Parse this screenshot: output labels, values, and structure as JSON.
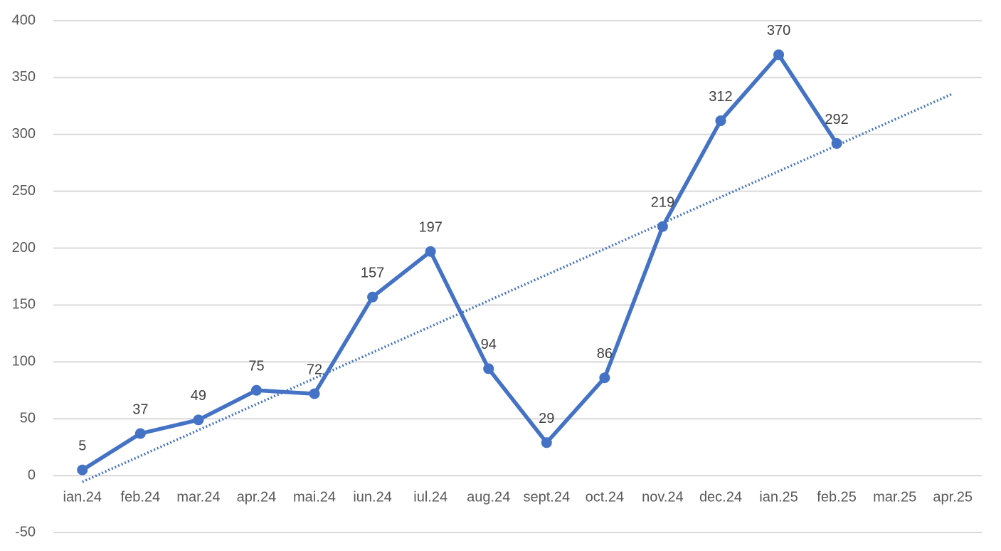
{
  "chart_data": {
    "type": "line",
    "categories": [
      "ian.24",
      "feb.24",
      "mar.24",
      "apr.24",
      "mai.24",
      "iun.24",
      "iul.24",
      "aug.24",
      "sept.24",
      "oct.24",
      "nov.24",
      "dec.24",
      "ian.25",
      "feb.25",
      "mar.25",
      "apr.25"
    ],
    "values": [
      5,
      37,
      49,
      75,
      72,
      157,
      197,
      94,
      29,
      86,
      219,
      312,
      370,
      292,
      null,
      null
    ],
    "color": "#4472c4",
    "ylim": [
      -50,
      400
    ],
    "yticks": [
      -50,
      0,
      50,
      100,
      150,
      200,
      250,
      300,
      350,
      400
    ],
    "grid": true,
    "trendline": true,
    "data_labels": true
  }
}
